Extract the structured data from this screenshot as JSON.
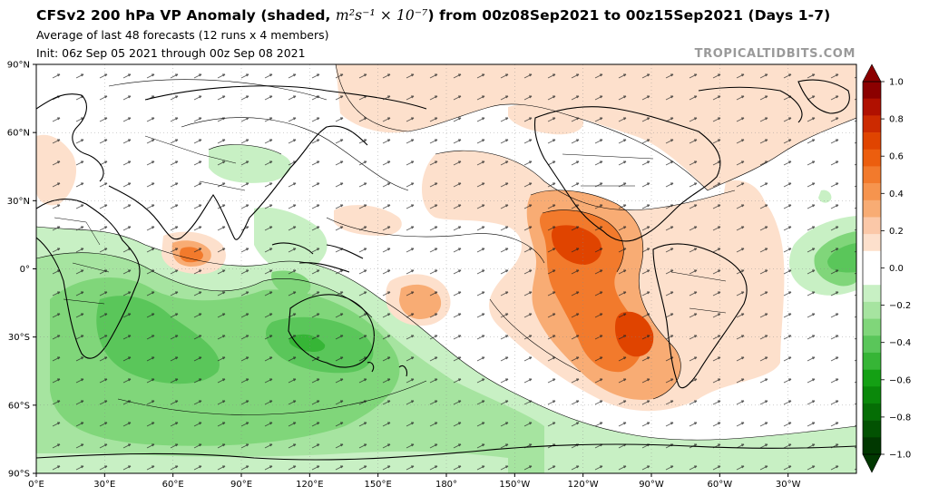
{
  "title": {
    "prefix": "CFSv2 200 hPa VP Anomaly (shaded, ",
    "units_math": "m²s⁻¹ × 10⁻⁷",
    "suffix": ") from 00z08Sep2021 to 00z15Sep2021 (Days 1-7)"
  },
  "subtitle1": "Average of last 48 forecasts (12 runs x 4 members)",
  "subtitle2": "Init: 06z Sep 05 2021 through 00z Sep 08 2021",
  "brand": "TROPICALTIDBITS.COM",
  "map": {
    "lon_ticks": [
      "0°E",
      "30°E",
      "60°E",
      "90°E",
      "120°E",
      "150°E",
      "180°",
      "150°W",
      "120°W",
      "90°W",
      "60°W",
      "30°W"
    ],
    "lat_ticks": [
      "90°N",
      "60°N",
      "30°N",
      "0°",
      "30°S",
      "60°S",
      "90°S"
    ],
    "features": [
      "velocity potential anomaly shading",
      "contours",
      "divergent wind vectors",
      "coastlines",
      "country borders"
    ]
  },
  "colorbar": {
    "ticks": [
      "1.0",
      "0.8",
      "0.6",
      "0.4",
      "0.2",
      "0.0",
      "−0.2",
      "−0.4",
      "−0.6",
      "−0.8",
      "−1.0"
    ],
    "levels_top_to_bottom": [
      "#8b0000",
      "#b01000",
      "#cc2a00",
      "#e04400",
      "#ec5e0e",
      "#f27a2c",
      "#f6944e",
      "#f8ac74",
      "#fbc8a8",
      "#fde0cc",
      "#ffffff",
      "#ffffff",
      "#c8f0c4",
      "#a6e4a0",
      "#80d67a",
      "#5ac65a",
      "#36b536",
      "#14a014",
      "#0a880a",
      "#056e05",
      "#025202",
      "#013801"
    ]
  }
}
